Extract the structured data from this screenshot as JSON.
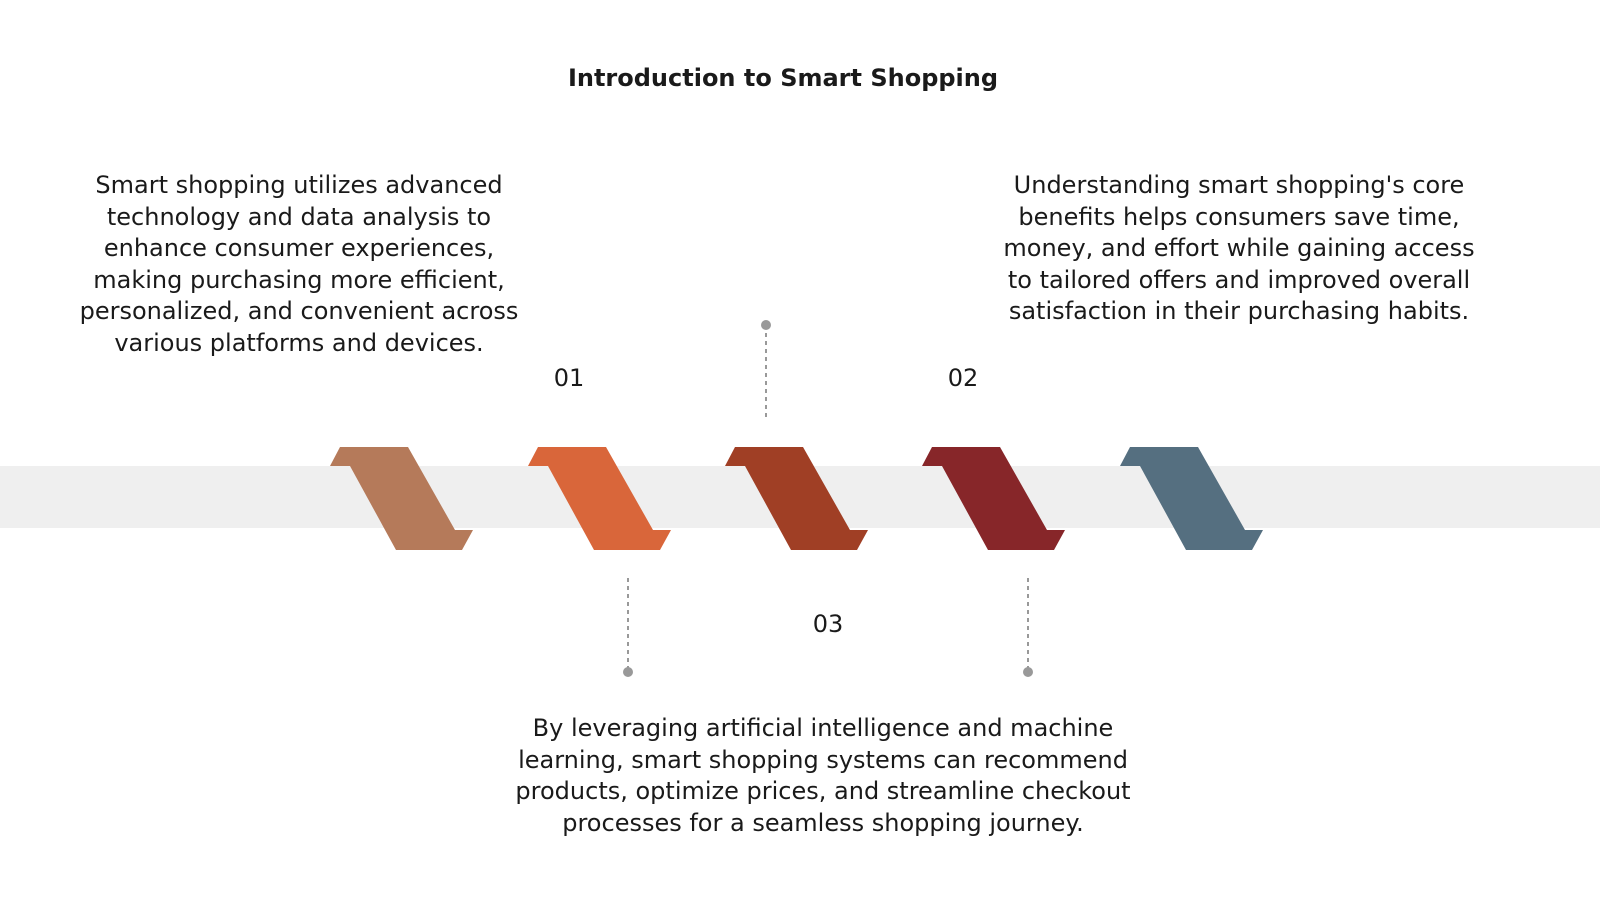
{
  "header": {
    "title": "Introduction to Smart Shopping"
  },
  "items": [
    {
      "number": "01",
      "text": "Smart shopping utilizes advanced technology and data analysis to enhance consumer experiences, making purchasing more efficient, personalized, and convenient across various platforms and devices."
    },
    {
      "number": "02",
      "text": "Understanding smart shopping's core benefits helps consumers save time, money, and effort while gaining access to tailored offers and improved overall satisfaction in their purchasing habits."
    },
    {
      "number": "03",
      "text": "By leveraging artificial intelligence and machine learning, smart shopping systems can recommend products, optimize prices, and streamline checkout processes for a seamless shopping journey."
    }
  ]
}
